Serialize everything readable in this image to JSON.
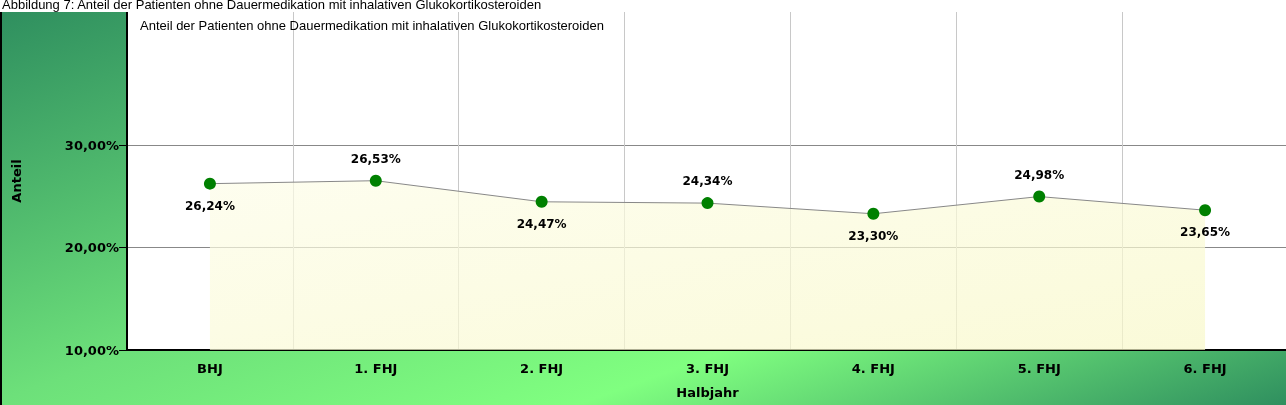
{
  "chart_data": {
    "type": "area",
    "title": "Anteil der Patienten ohne Dauermedikation mit inhalativen Glukokortikosteroiden",
    "annotations": [
      "Abbildung 7: Anteil der Patienten ohne Dauermedikation mit inhalativen Glukokortikosteroiden"
    ],
    "xlabel": "Halbjahr",
    "ylabel": "Anteil",
    "categories": [
      "BHJ",
      "1. FHJ",
      "2. FHJ",
      "3. FHJ",
      "4. FHJ",
      "5. FHJ",
      "6. FHJ"
    ],
    "series": [
      {
        "color": "#008000",
        "values": [
          26.24,
          26.53,
          24.47,
          24.34,
          23.3,
          24.98,
          23.65
        ],
        "value_labels": [
          "26,24%",
          "26,53%",
          "24,47%",
          "24,34%",
          "23,30%",
          "24,98%",
          "23,65%"
        ]
      }
    ],
    "ylim": [
      10,
      43
    ],
    "yticks": [
      {
        "value": 10,
        "label": "10,00%"
      },
      {
        "value": 20,
        "label": "20,00%"
      },
      {
        "value": 30,
        "label": "30,00%"
      }
    ],
    "grid": true,
    "marker": "circle",
    "line_style": "solid"
  }
}
